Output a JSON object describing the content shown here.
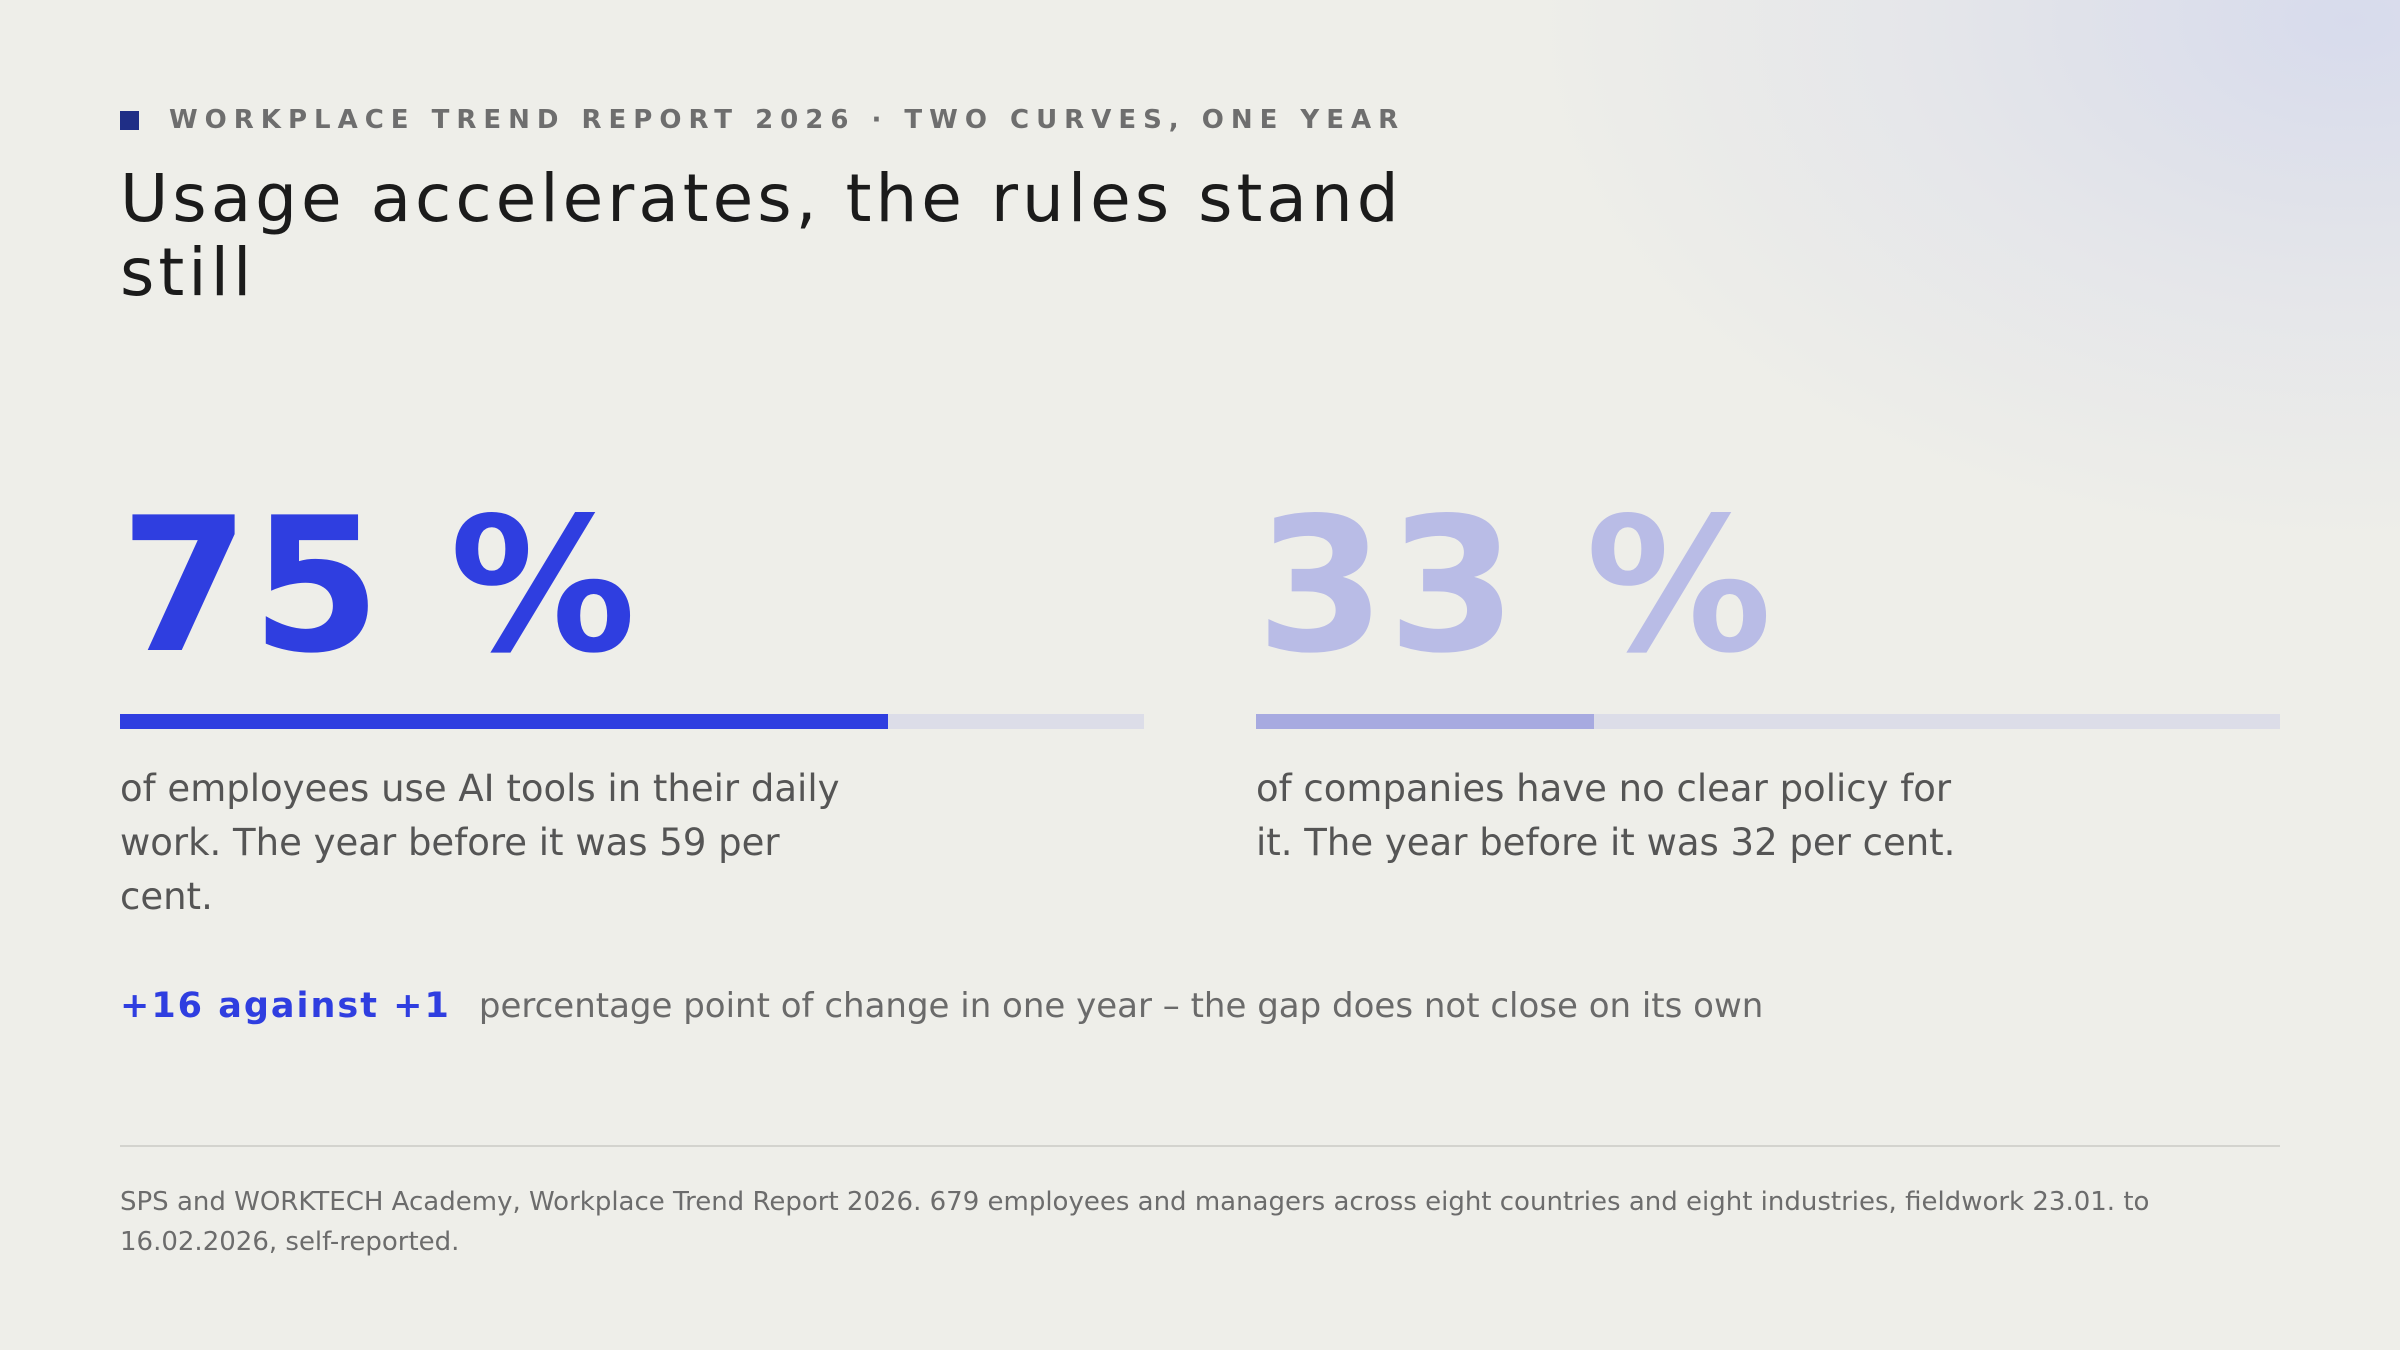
{
  "header": {
    "kicker": "WORKPLACE TREND REPORT 2026 · TWO CURVES, ONE YEAR",
    "title": "Usage accelerates, the rules stand still"
  },
  "stats": [
    {
      "value_label": "75 %",
      "value": 75,
      "description": "of employees use AI tools in their daily work. The year before it was 59 per cent."
    },
    {
      "value_label": "33 %",
      "value": 33,
      "description": "of companies have no clear policy for it. The year before it was 32 per cent."
    }
  ],
  "comparison": {
    "highlight": "+16 against +1",
    "text": "percentage point of change in one year – the gap does not close on its own"
  },
  "footer": {
    "source": "SPS and WORKTECH Academy, Workplace Trend Report 2026. 679 employees and managers across eight countries and eight industries, fieldwork 23.01. to 16.02.2026, self-reported."
  },
  "colors": {
    "accent": "#2f3ee0",
    "accent_muted": "#b9bce6",
    "kicker_mark": "#1f2e86",
    "track": "#dcdde8"
  }
}
